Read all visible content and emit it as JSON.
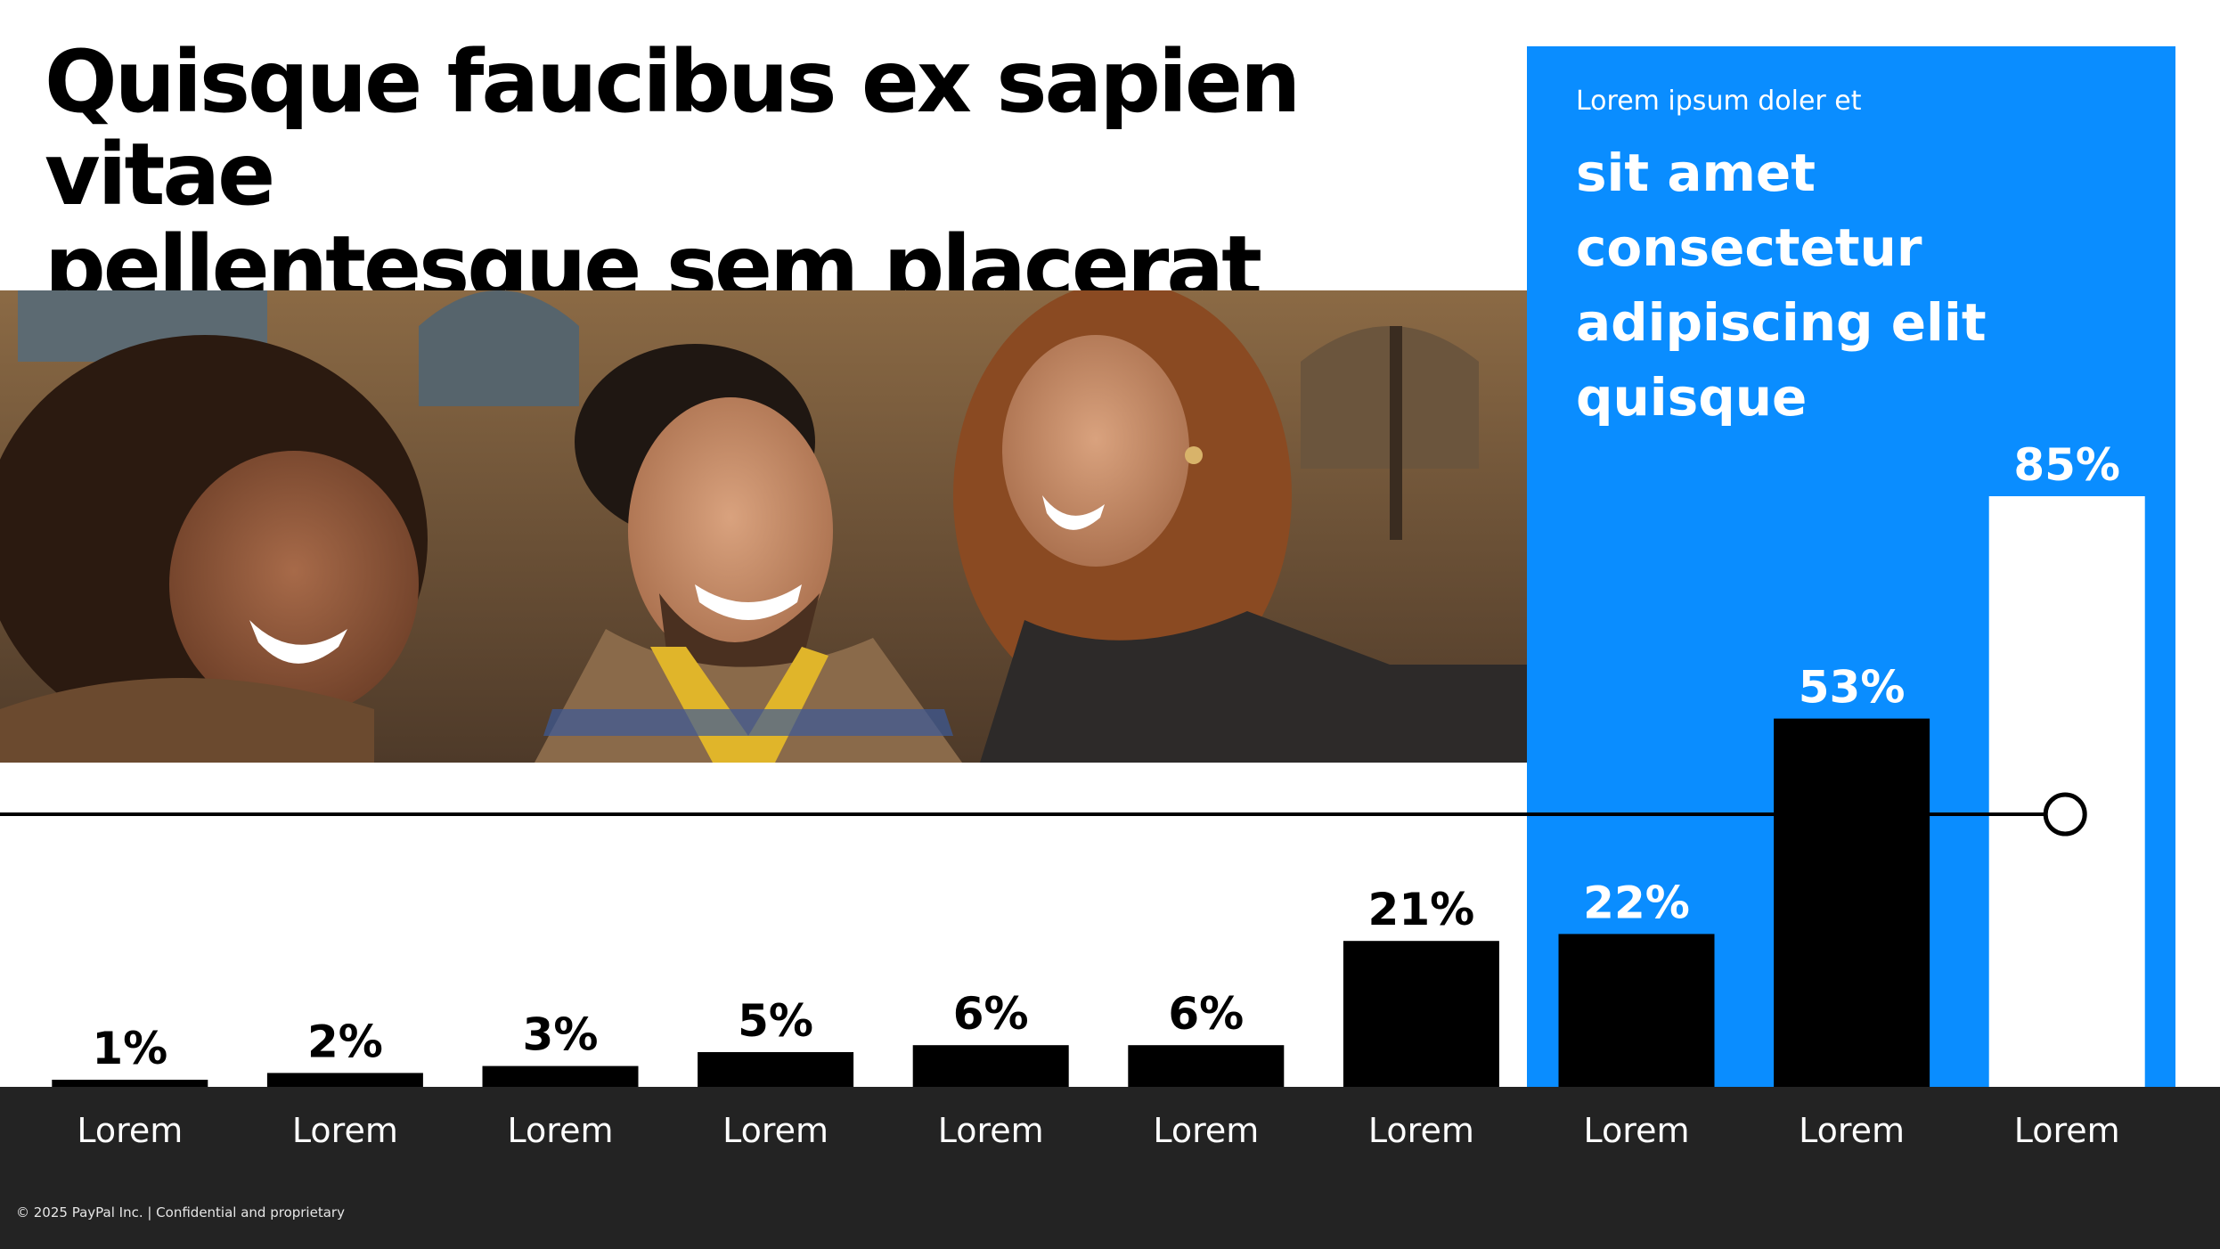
{
  "slide": {
    "title_lines": [
      "Quisque faucibus ex sapien vitae",
      "pellentesque sem placerat"
    ],
    "panel_subtitle": "Lorem ipsum doler et",
    "panel_heading_lines": [
      "sit amet",
      "consectetur",
      "adipiscing elit",
      "quisque"
    ],
    "footer": "© 2025 PayPal Inc. | Confidential and proprietary",
    "photo_description_icon": "photo-three-people-laughing"
  },
  "colors": {
    "accent_blue": "#0a8dff",
    "bar_black": "#000000",
    "bar_highlight": "#ffffff",
    "footer_band": "#232323"
  },
  "chart_data": {
    "type": "bar",
    "categories": [
      "Lorem",
      "Lorem",
      "Lorem",
      "Lorem",
      "Lorem",
      "Lorem",
      "Lorem",
      "Lorem",
      "Lorem",
      "Lorem"
    ],
    "values": [
      1,
      2,
      3,
      5,
      6,
      6,
      21,
      22,
      53,
      85
    ],
    "value_labels": [
      "1%",
      "2%",
      "3%",
      "5%",
      "6%",
      "6%",
      "21%",
      "22%",
      "53%",
      "85%"
    ],
    "highlight_index": 9,
    "threshold_line": true,
    "ylim": [
      0,
      100
    ],
    "grid": false,
    "legend": "none",
    "title": "",
    "xlabel": "",
    "ylabel": ""
  }
}
